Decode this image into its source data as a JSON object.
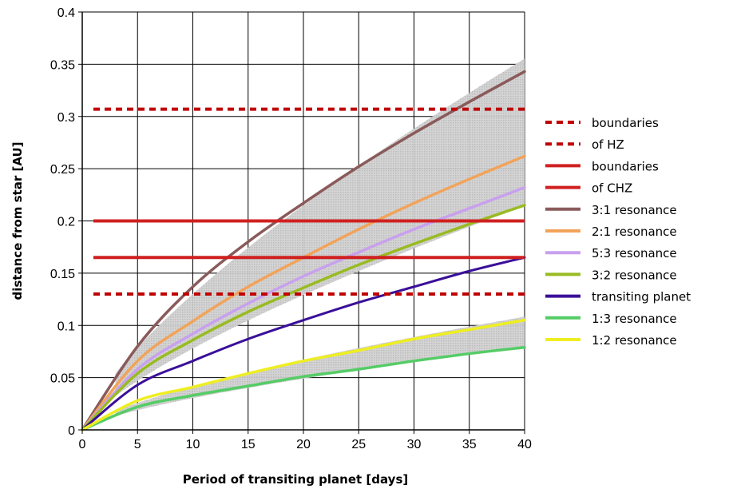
{
  "chart_data": {
    "type": "line",
    "title": "",
    "xlabel": "Period of transiting planet [days]",
    "ylabel": "distance from star [AU]",
    "xlim": [
      0,
      40
    ],
    "ylim": [
      0,
      0.4
    ],
    "x_ticks": [
      "0",
      "5",
      "10",
      "15",
      "20",
      "25",
      "30",
      "35",
      "40"
    ],
    "y_ticks": [
      "0",
      "0.05",
      "0.1",
      "0.15",
      "0.2",
      "0.25",
      "0.3",
      "0.35",
      "0.4"
    ],
    "grid": true,
    "legend_position": "right",
    "horizontal_lines": [
      {
        "name": "boundaries",
        "y": 0.307,
        "style": "dashed",
        "color": "#c00000"
      },
      {
        "name": "of HZ",
        "y": 0.13,
        "style": "dashed",
        "color": "#c00000"
      },
      {
        "name": "boundaries",
        "y": 0.2,
        "style": "solid",
        "color": "#d02020"
      },
      {
        "name": "of CHZ",
        "y": 0.165,
        "style": "solid",
        "color": "#d02020"
      }
    ],
    "series": [
      {
        "name": "3:1 resonance",
        "color": "#8a5a5a",
        "x": [
          0,
          5,
          10,
          15,
          20,
          25,
          30,
          35,
          40
        ],
        "y": [
          0,
          0.08,
          0.137,
          0.18,
          0.217,
          0.252,
          0.284,
          0.314,
          0.343
        ]
      },
      {
        "name": "2:1 resonance",
        "color": "#f2a35a",
        "x": [
          0,
          5,
          10,
          15,
          20,
          25,
          30,
          35,
          40
        ],
        "y": [
          0,
          0.066,
          0.104,
          0.137,
          0.165,
          0.192,
          0.217,
          0.24,
          0.262
        ]
      },
      {
        "name": "5:3 resonance",
        "color": "#c9a0ee",
        "x": [
          0,
          5,
          10,
          15,
          20,
          25,
          30,
          35,
          40
        ],
        "y": [
          0,
          0.058,
          0.092,
          0.121,
          0.147,
          0.17,
          0.192,
          0.212,
          0.232
        ]
      },
      {
        "name": "3:2 resonance",
        "color": "#99bb22",
        "x": [
          0,
          5,
          10,
          15,
          20,
          25,
          30,
          35,
          40
        ],
        "y": [
          0,
          0.054,
          0.086,
          0.113,
          0.136,
          0.158,
          0.178,
          0.197,
          0.215
        ]
      },
      {
        "name": "transiting planet",
        "color": "#3a0f99",
        "x": [
          0,
          5,
          10,
          15,
          20,
          25,
          30,
          35,
          40
        ],
        "y": [
          0,
          0.043,
          0.066,
          0.087,
          0.105,
          0.122,
          0.137,
          0.152,
          0.165
        ]
      },
      {
        "name": "1:3 resonance",
        "color": "#55cc66",
        "x": [
          0,
          5,
          10,
          15,
          20,
          25,
          30,
          35,
          40
        ],
        "y": [
          0,
          0.022,
          0.033,
          0.042,
          0.051,
          0.058,
          0.066,
          0.073,
          0.079
        ]
      },
      {
        "name": "1:2 resonance",
        "color": "#eeee22",
        "x": [
          0,
          5,
          10,
          15,
          20,
          25,
          30,
          35,
          40
        ],
        "y": [
          0,
          0.028,
          0.041,
          0.054,
          0.066,
          0.076,
          0.087,
          0.096,
          0.105
        ]
      }
    ]
  }
}
